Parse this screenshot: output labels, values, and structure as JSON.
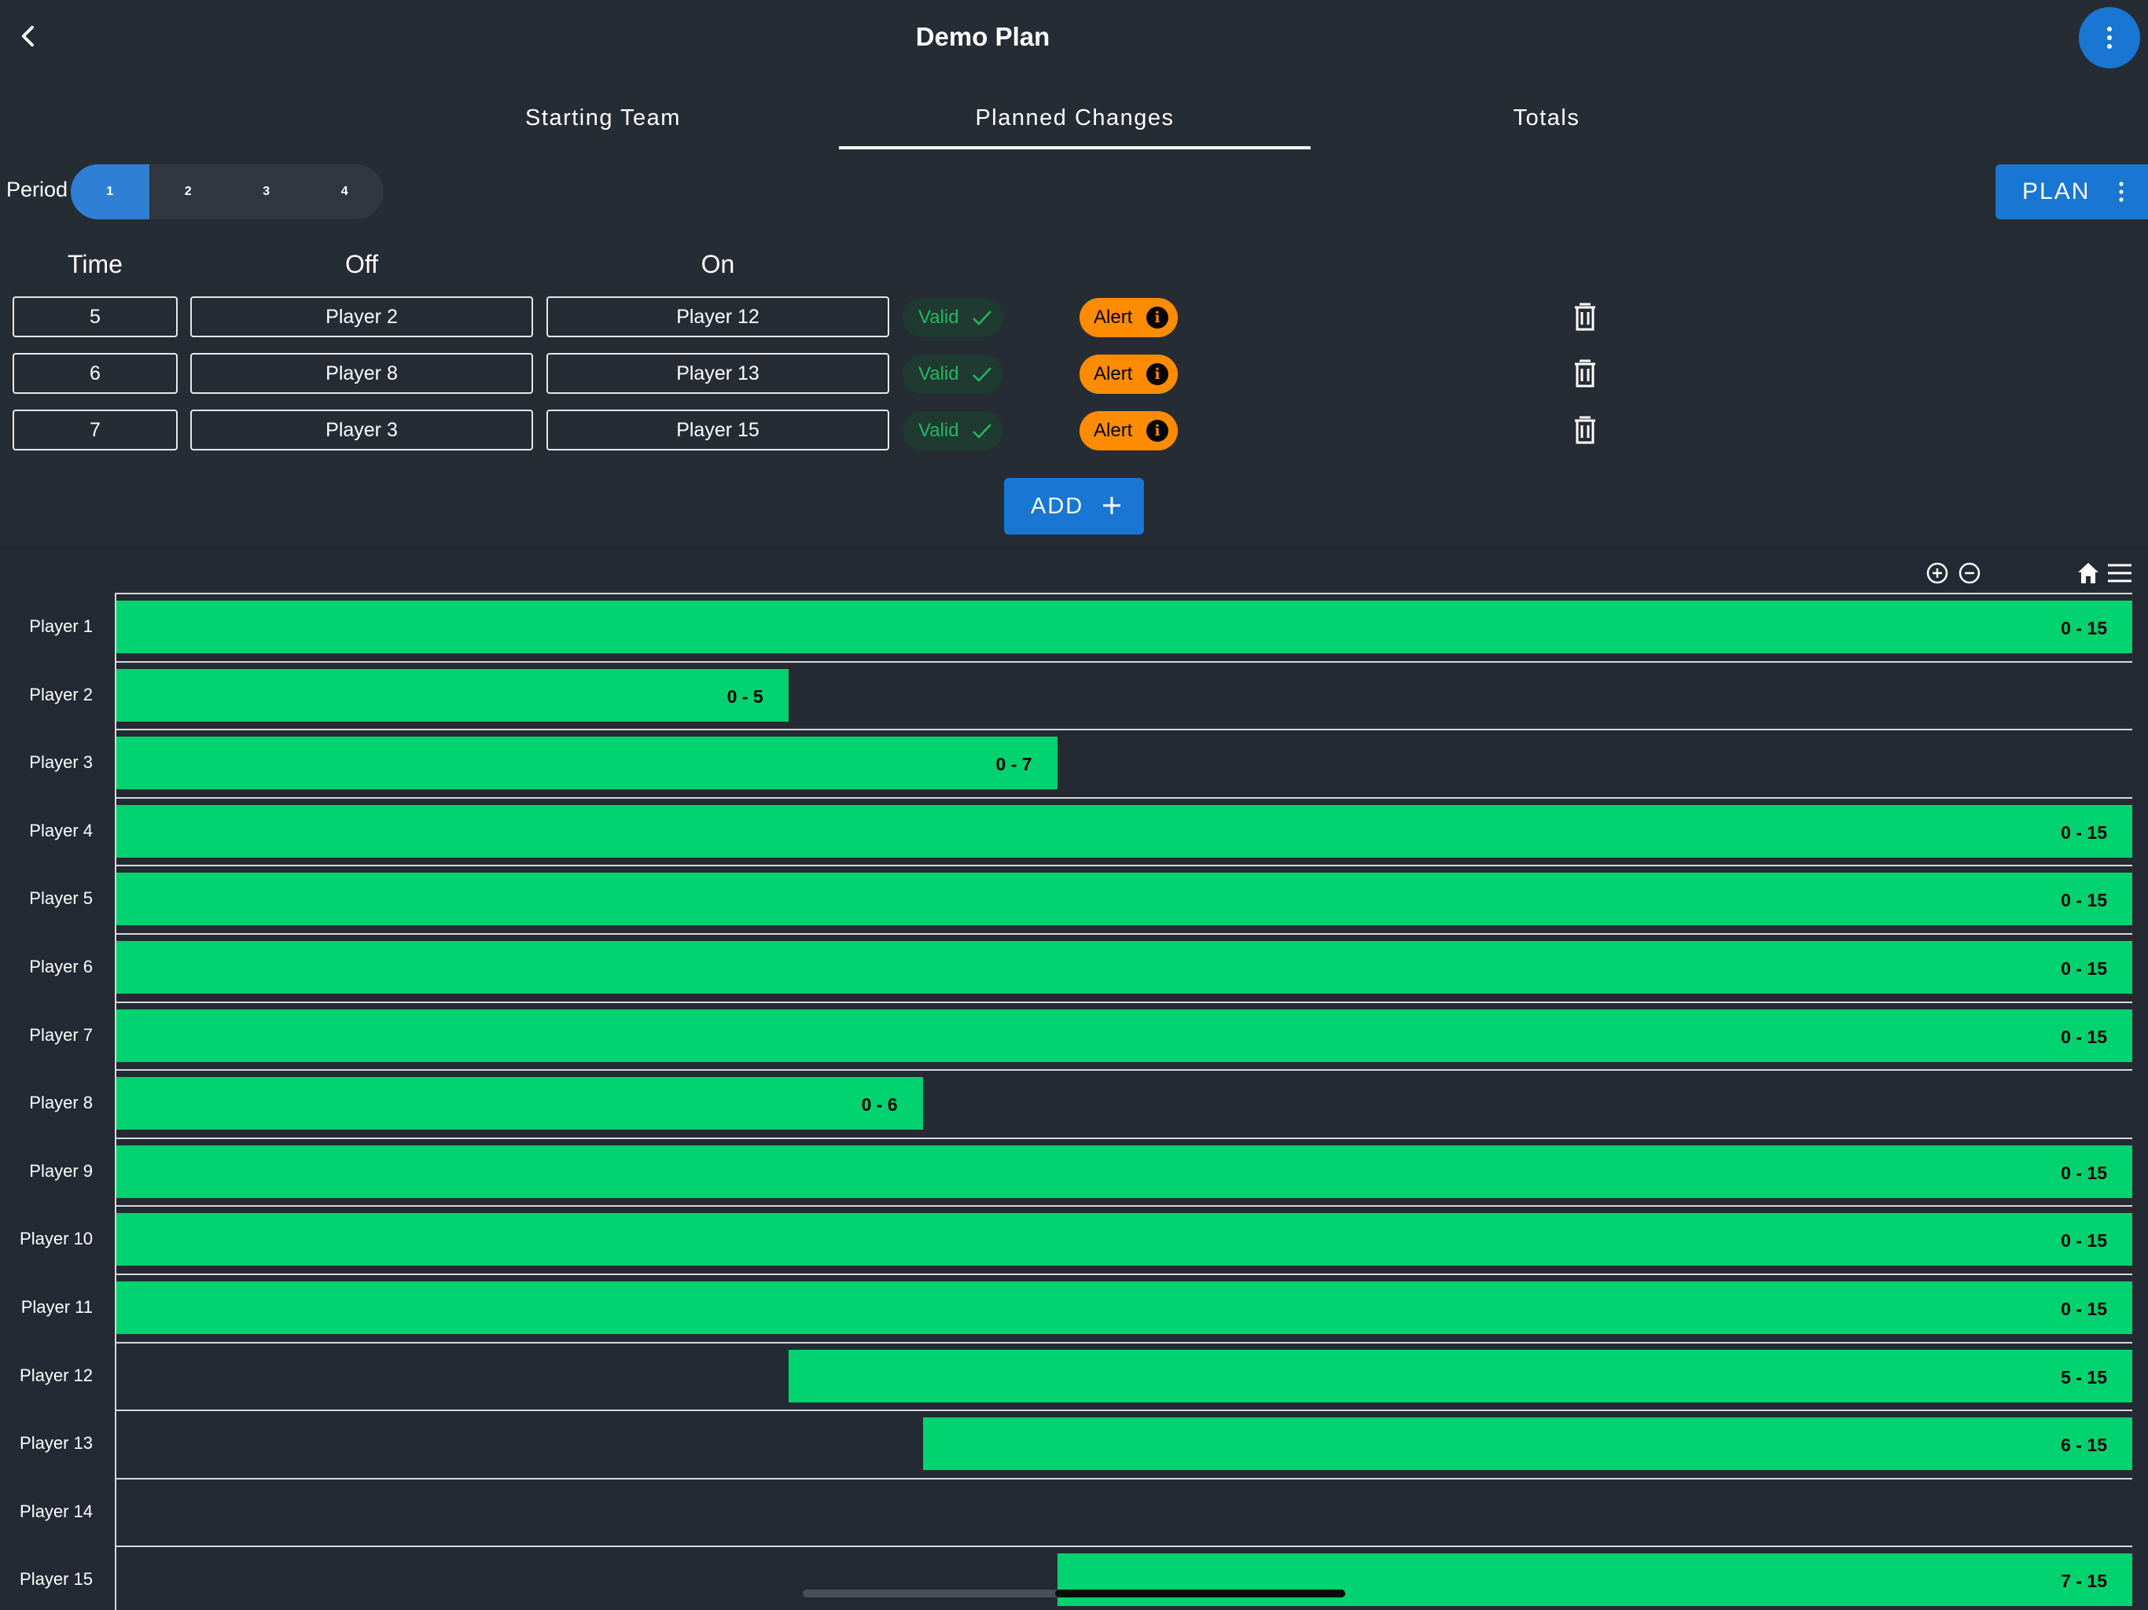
{
  "header": {
    "title": "Demo Plan",
    "back_icon": "chevron-left-icon",
    "menu_icon": "more-vert-icon",
    "accent": "#1976d2"
  },
  "tabs": [
    {
      "label": "Starting Team",
      "active": false
    },
    {
      "label": "Planned Changes",
      "active": true
    },
    {
      "label": "Totals",
      "active": false
    }
  ],
  "period": {
    "label": "Period",
    "options": [
      "1",
      "2",
      "3",
      "4"
    ],
    "selected": "1"
  },
  "plan_button": {
    "label": "PLAN"
  },
  "columns": {
    "time": "Time",
    "off": "Off",
    "on": "On"
  },
  "changes": [
    {
      "time": "5",
      "off": "Player 2",
      "on": "Player 12",
      "valid": "Valid",
      "alert": "Alert"
    },
    {
      "time": "6",
      "off": "Player 8",
      "on": "Player 13",
      "valid": "Valid",
      "alert": "Alert"
    },
    {
      "time": "7",
      "off": "Player 3",
      "on": "Player 15",
      "valid": "Valid",
      "alert": "Alert"
    }
  ],
  "add_button": {
    "label": "ADD"
  },
  "chart_data": {
    "type": "bar",
    "orientation": "horizontal-range",
    "x_range": [
      0,
      15
    ],
    "bar_color": "#00d26f",
    "toolbar_icons": [
      "zoom-in-icon",
      "zoom-out-icon",
      "home-icon",
      "menu-icon"
    ],
    "rows": [
      {
        "name": "Player 1",
        "start": 0,
        "end": 15,
        "label": "0 - 15"
      },
      {
        "name": "Player 2",
        "start": 0,
        "end": 5,
        "label": "0 - 5"
      },
      {
        "name": "Player 3",
        "start": 0,
        "end": 7,
        "label": "0 - 7"
      },
      {
        "name": "Player 4",
        "start": 0,
        "end": 15,
        "label": "0 - 15"
      },
      {
        "name": "Player 5",
        "start": 0,
        "end": 15,
        "label": "0 - 15"
      },
      {
        "name": "Player 6",
        "start": 0,
        "end": 15,
        "label": "0 - 15"
      },
      {
        "name": "Player 7",
        "start": 0,
        "end": 15,
        "label": "0 - 15"
      },
      {
        "name": "Player 8",
        "start": 0,
        "end": 6,
        "label": "0 - 6"
      },
      {
        "name": "Player 9",
        "start": 0,
        "end": 15,
        "label": "0 - 15"
      },
      {
        "name": "Player 10",
        "start": 0,
        "end": 15,
        "label": "0 - 15"
      },
      {
        "name": "Player 11",
        "start": 0,
        "end": 15,
        "label": "0 - 15"
      },
      {
        "name": "Player 12",
        "start": 5,
        "end": 15,
        "label": "5 - 15"
      },
      {
        "name": "Player 13",
        "start": 6,
        "end": 15,
        "label": "6 - 15"
      },
      {
        "name": "Player 14",
        "start": null,
        "end": null,
        "label": ""
      },
      {
        "name": "Player 15",
        "start": 7,
        "end": 15,
        "label": "7 - 15"
      }
    ]
  }
}
